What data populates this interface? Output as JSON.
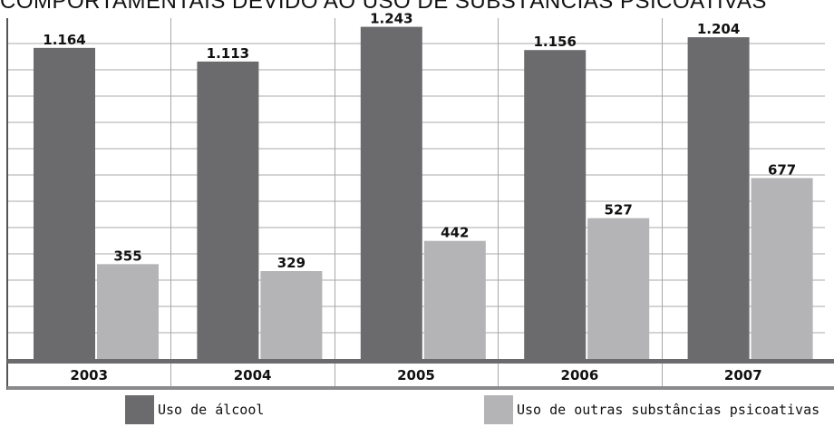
{
  "title": "COMPORTAMENTAIS DEVIDO AO USO DE SUBSTÂNCIAS PSICOATIVAS",
  "chart_data": {
    "type": "bar",
    "categories": [
      "2003",
      "2004",
      "2005",
      "2006",
      "2007"
    ],
    "series": [
      {
        "name": "Uso de álcool",
        "values": [
          1164,
          1113,
          1243,
          1156,
          1204
        ],
        "labels": [
          "1.164",
          "1.113",
          "1.243",
          "1.156",
          "1.204"
        ],
        "color": "#6b6b6e"
      },
      {
        "name": "Uso de outras substâncias psicoativas",
        "values": [
          355,
          329,
          442,
          527,
          677
        ],
        "labels": [
          "355",
          "329",
          "442",
          "527",
          "677"
        ],
        "color": "#b4b4b6"
      }
    ],
    "ylim": [
      0,
      1300
    ],
    "grid": true,
    "legend": "bottom"
  }
}
